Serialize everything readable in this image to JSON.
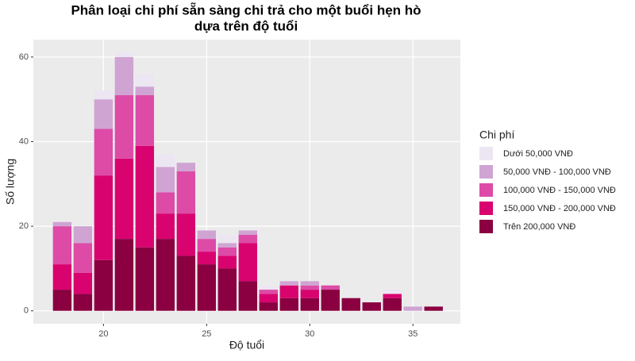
{
  "chart_data": {
    "type": "stacked-bar",
    "title": [
      "Phân loại chi phí sẵn sàng chi trả cho một buổi hẹn hò",
      "dựa trên độ tuổi"
    ],
    "x_label": "Độ tuổi",
    "y_label": "Số lượng",
    "legend_title": "Chi phí",
    "x": [
      18,
      19,
      20,
      21,
      22,
      23,
      24,
      25,
      26,
      27,
      28,
      29,
      30,
      31,
      32,
      33,
      34,
      35,
      36
    ],
    "series": [
      {
        "name": "Dưới 50,000 VNĐ",
        "color": "#ece6f3",
        "values": [
          0,
          0,
          2,
          1,
          3,
          3,
          0,
          0,
          2,
          0,
          1,
          0,
          0,
          0,
          0,
          0,
          1,
          0,
          0
        ]
      },
      {
        "name": "50,000 VNĐ - 100,000 VNĐ",
        "color": "#cfa4d3",
        "values": [
          1,
          4,
          7,
          9,
          2,
          6,
          2,
          2,
          1,
          1,
          0,
          1,
          1,
          0,
          0,
          0,
          0,
          1,
          0
        ]
      },
      {
        "name": "100,000 VNĐ - 150,000 VNĐ",
        "color": "#dd4ba7",
        "values": [
          9,
          7,
          11,
          15,
          12,
          5,
          10,
          3,
          2,
          2,
          1,
          0,
          1,
          1,
          0,
          0,
          0,
          0,
          0
        ]
      },
      {
        "name": "150,000 VNĐ - 200,000 VNĐ",
        "color": "#d9036f",
        "values": [
          6,
          5,
          20,
          19,
          24,
          6,
          10,
          3,
          3,
          9,
          2,
          3,
          2,
          0,
          0,
          0,
          1,
          0,
          0
        ]
      },
      {
        "name": "Trên 200,000 VNĐ",
        "color": "#8a0040",
        "values": [
          5,
          4,
          12,
          17,
          15,
          17,
          13,
          11,
          10,
          7,
          2,
          3,
          3,
          5,
          3,
          2,
          3,
          0,
          1
        ]
      }
    ],
    "bar_width": 0.9,
    "xlim": [
      16.6,
      37.3
    ],
    "xticks": [
      20,
      25,
      30,
      35
    ],
    "ylim": [
      -3.05,
      64.1
    ],
    "yticks": [
      0,
      20,
      40,
      60
    ],
    "grid": true,
    "legend_position": "right"
  }
}
